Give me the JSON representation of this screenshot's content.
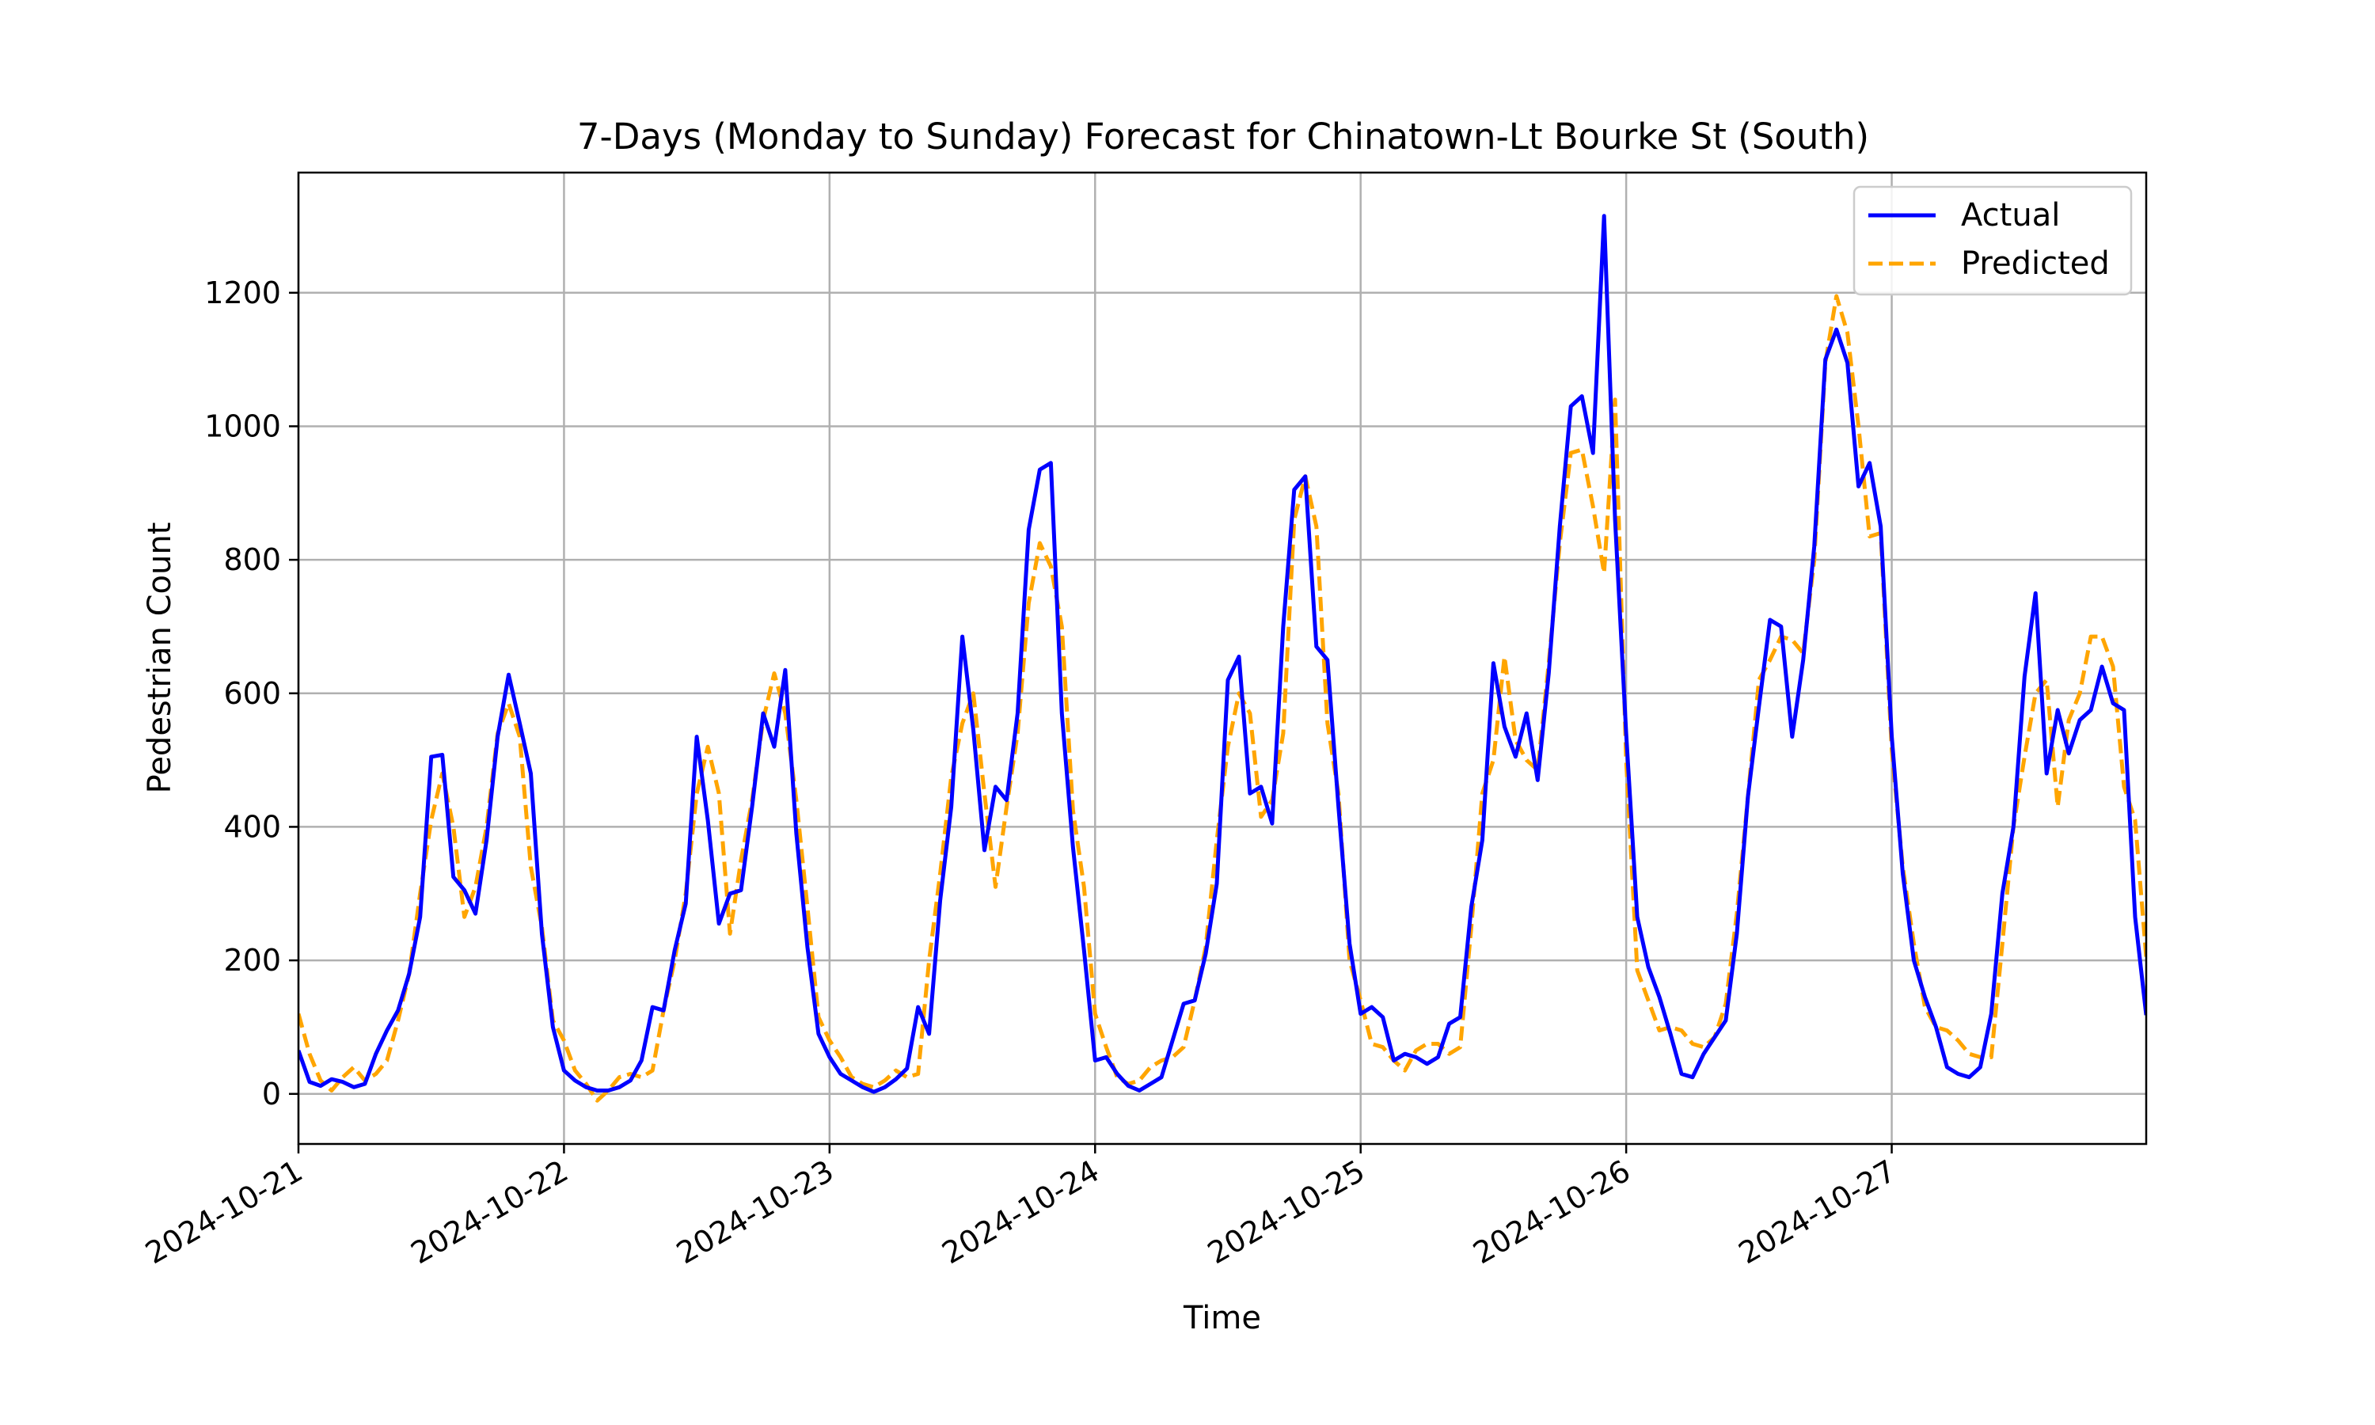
{
  "chart_data": {
    "type": "line",
    "title": "7-Days (Monday to Sunday) Forecast for Chinatown-Lt Bourke St (South)",
    "xlabel": "Time",
    "ylabel": "Pedestrian Count",
    "ylim": [
      -75,
      1380
    ],
    "xlim": [
      0,
      167
    ],
    "y_ticks": [
      0,
      200,
      400,
      600,
      800,
      1000,
      1200
    ],
    "x_ticks": [
      {
        "hour": 0,
        "label": "2024-10-21"
      },
      {
        "hour": 24,
        "label": "2024-10-22"
      },
      {
        "hour": 48,
        "label": "2024-10-23"
      },
      {
        "hour": 72,
        "label": "2024-10-24"
      },
      {
        "hour": 96,
        "label": "2024-10-25"
      },
      {
        "hour": 120,
        "label": "2024-10-26"
      },
      {
        "hour": 144,
        "label": "2024-10-27"
      }
    ],
    "x_unit": "hours from 2024-10-21 00:00",
    "grid": true,
    "legend_position": "top-right",
    "series": [
      {
        "name": "Actual",
        "color": "#0000ff",
        "style": "solid",
        "values": [
          65,
          18,
          12,
          22,
          18,
          10,
          15,
          60,
          95,
          125,
          180,
          265,
          505,
          508,
          325,
          305,
          270,
          380,
          535,
          628,
          555,
          480,
          240,
          100,
          35,
          20,
          10,
          5,
          5,
          10,
          20,
          50,
          130,
          125,
          215,
          285,
          535,
          410,
          255,
          300,
          305,
          430,
          570,
          520,
          635,
          390,
          220,
          90,
          55,
          30,
          20,
          10,
          3,
          10,
          22,
          38,
          130,
          90,
          290,
          430,
          685,
          545,
          365,
          460,
          440,
          570,
          845,
          935,
          945,
          570,
          370,
          215,
          50,
          55,
          30,
          12,
          5,
          15,
          25,
          80,
          135,
          140,
          210,
          315,
          620,
          655,
          450,
          460,
          405,
          700,
          905,
          925,
          670,
          650,
          430,
          225,
          120,
          130,
          115,
          50,
          60,
          55,
          45,
          55,
          105,
          115,
          280,
          380,
          645,
          550,
          505,
          570,
          470,
          630,
          850,
          1030,
          1045,
          960,
          1315,
          860,
          540,
          265,
          190,
          145,
          90,
          30,
          25,
          60,
          85,
          110,
          240,
          445,
          580,
          710,
          700,
          535,
          650,
          820,
          1100,
          1145,
          1095,
          910,
          945,
          850,
          535,
          330,
          200,
          145,
          100,
          40,
          30,
          25,
          40,
          120,
          300,
          400,
          625,
          750,
          480,
          575,
          510,
          560,
          575,
          640,
          585,
          575,
          265,
          118
        ]
      },
      {
        "name": "Predicted",
        "color": "#ffa500",
        "style": "dashed",
        "values": [
          120,
          60,
          20,
          5,
          25,
          40,
          20,
          30,
          50,
          110,
          180,
          300,
          410,
          480,
          400,
          265,
          310,
          400,
          540,
          585,
          535,
          340,
          250,
          110,
          80,
          35,
          15,
          -10,
          5,
          25,
          30,
          25,
          35,
          125,
          200,
          300,
          450,
          520,
          450,
          240,
          350,
          440,
          560,
          630,
          570,
          440,
          280,
          115,
          80,
          55,
          25,
          15,
          10,
          20,
          35,
          25,
          30,
          200,
          330,
          475,
          555,
          600,
          450,
          310,
          430,
          540,
          735,
          825,
          790,
          700,
          425,
          310,
          120,
          70,
          25,
          15,
          20,
          40,
          50,
          55,
          70,
          140,
          220,
          380,
          520,
          600,
          570,
          415,
          440,
          540,
          860,
          925,
          850,
          555,
          450,
          200,
          140,
          75,
          70,
          50,
          35,
          65,
          75,
          75,
          60,
          70,
          250,
          450,
          500,
          655,
          530,
          500,
          485,
          645,
          825,
          960,
          965,
          880,
          780,
          1040,
          500,
          185,
          140,
          95,
          100,
          95,
          75,
          70,
          85,
          135,
          270,
          445,
          620,
          650,
          685,
          680,
          660,
          800,
          1095,
          1195,
          1140,
          1000,
          835,
          840,
          515,
          340,
          225,
          130,
          100,
          95,
          80,
          60,
          55,
          55,
          225,
          400,
          505,
          600,
          620,
          430,
          560,
          600,
          685,
          685,
          640,
          460,
          410,
          205
        ]
      }
    ]
  }
}
